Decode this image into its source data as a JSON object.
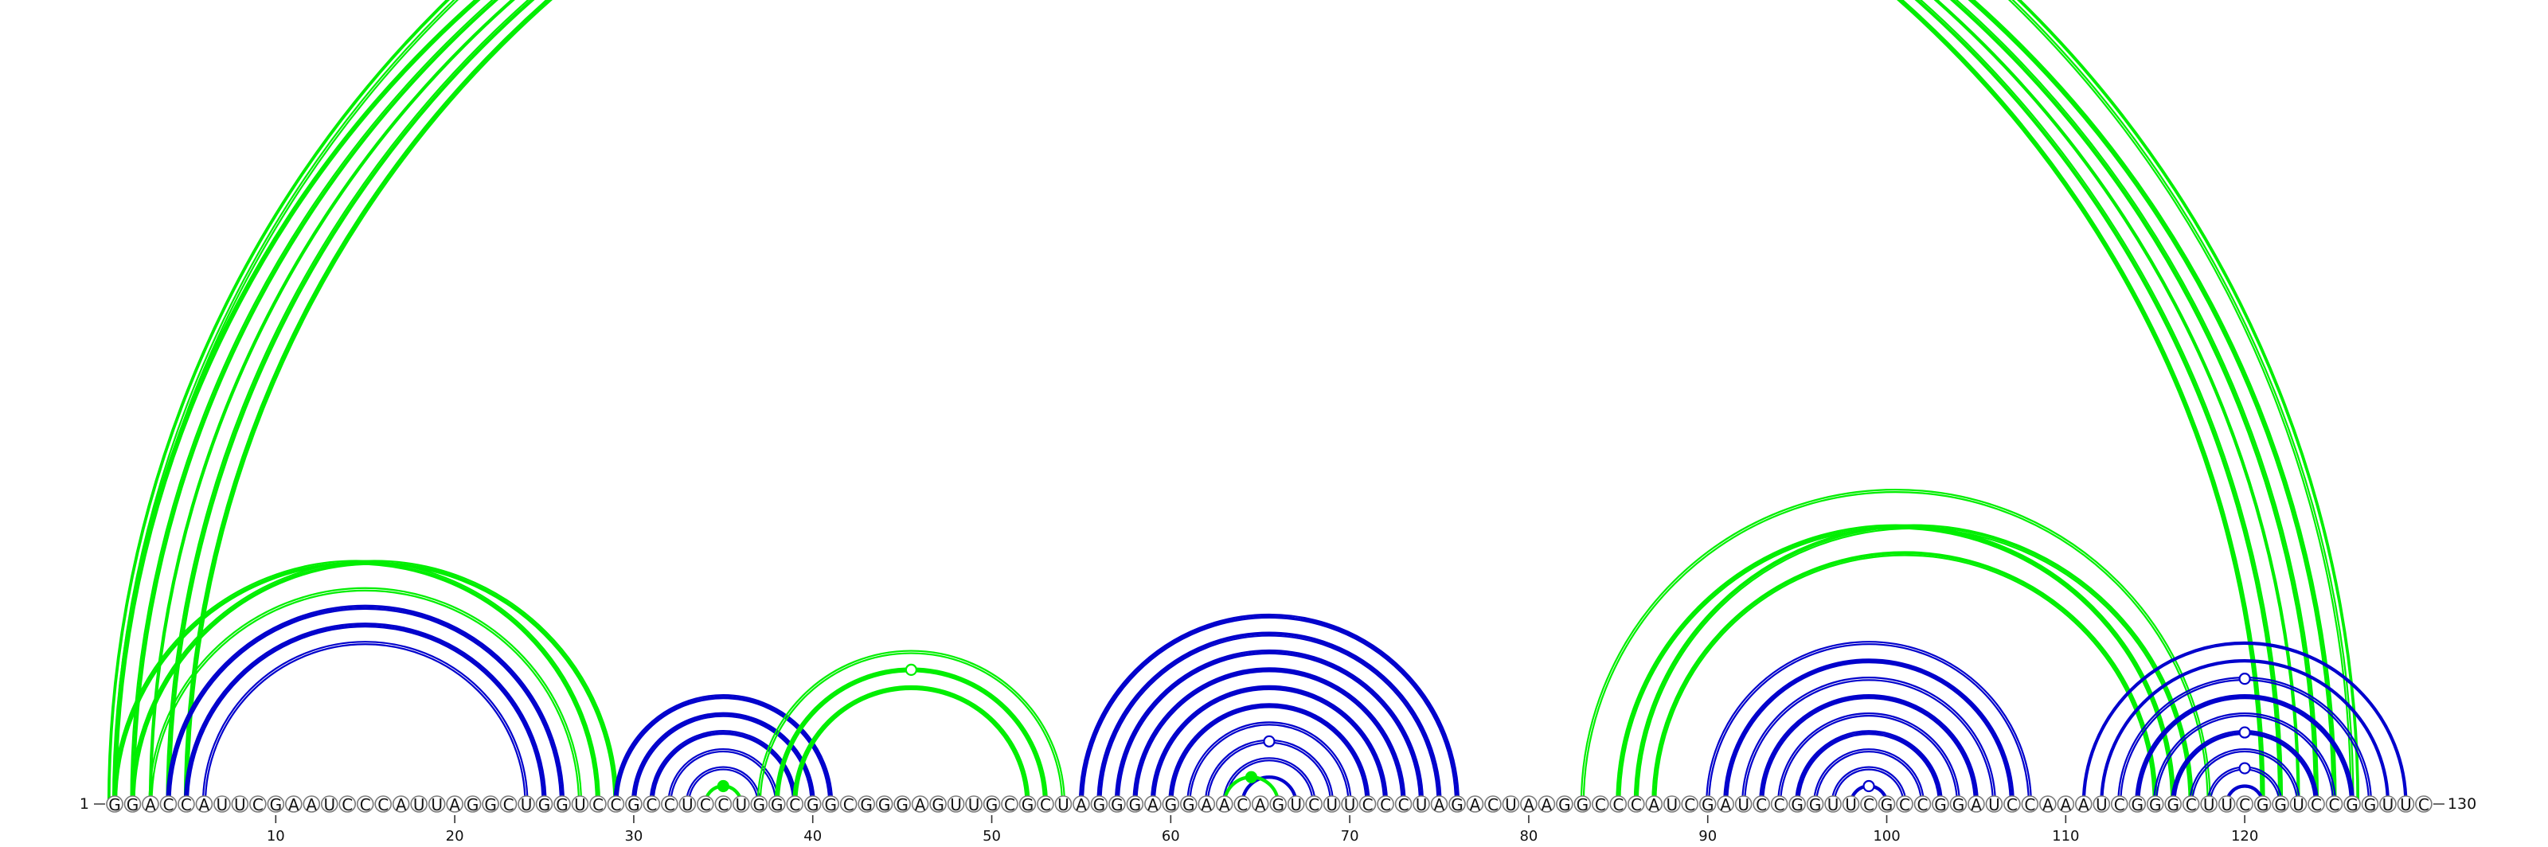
{
  "sequence": "GGACCAUUCGAAUCCCAUUAGGCUGGUCCGCCUCCUGGCGGCGGGAGUUGCGCUAGGGAGGAACAGUCUUCCCUAGACUAAGGCCCAUCGAUCCGGUUCGCCGGAUCCAAAUCGGGCUUCGGUCCGGUUC",
  "start_label": "1",
  "end_label": "130",
  "ticks": [
    "10",
    "20",
    "30",
    "40",
    "50",
    "60",
    "70",
    "80",
    "90",
    "100",
    "110",
    "120"
  ],
  "colors": {
    "blue": "#0000cc",
    "green": "#00ee00"
  },
  "arc_groups": [
    {
      "color": "green",
      "i": 1,
      "j": 126,
      "offs": [
        -1.5,
        1.5,
        6.5,
        8
      ]
    },
    {
      "color": "green",
      "i": 1,
      "j": 121,
      "offs": [
        -2,
        0,
        2
      ]
    },
    {
      "color": "green",
      "i": 2,
      "j": 122,
      "offs": [
        -2,
        0,
        2
      ]
    },
    {
      "color": "green",
      "i": 3,
      "j": 123,
      "offs": [
        -1,
        1
      ]
    },
    {
      "color": "green",
      "i": 4,
      "j": 124,
      "offs": [
        -2,
        0,
        2
      ]
    },
    {
      "color": "green",
      "i": 5,
      "j": 125,
      "offs": [
        -2,
        0,
        2
      ]
    },
    {
      "color": "green",
      "i": 2,
      "j": 29,
      "offs": [
        -2,
        0,
        2
      ]
    },
    {
      "color": "green",
      "i": 1,
      "j": 28,
      "offs": [
        -2,
        0,
        2
      ]
    },
    {
      "color": "green",
      "i": 3,
      "j": 27,
      "offs": [
        -1.5,
        1.5
      ]
    },
    {
      "color": "blue",
      "i": 4,
      "j": 26,
      "offs": [
        -2,
        0,
        2
      ]
    },
    {
      "color": "blue",
      "i": 5,
      "j": 25,
      "offs": [
        -2,
        0,
        2
      ]
    },
    {
      "color": "blue",
      "i": 6,
      "j": 24,
      "offs": [
        -1.5,
        1.5
      ]
    },
    {
      "color": "blue",
      "i": 29,
      "j": 41,
      "offs": [
        -2,
        0,
        2
      ]
    },
    {
      "color": "blue",
      "i": 30,
      "j": 40,
      "offs": [
        -2,
        0,
        2
      ]
    },
    {
      "color": "blue",
      "i": 31,
      "j": 39,
      "offs": [
        -2,
        0,
        2
      ]
    },
    {
      "color": "blue",
      "i": 32,
      "j": 38,
      "offs": [
        -1.5,
        1.5
      ]
    },
    {
      "color": "blue",
      "i": 33,
      "j": 37,
      "offs": [
        -1.5,
        1.5
      ]
    },
    {
      "color": "green",
      "i": 34,
      "j": 36,
      "offs": [
        -1,
        1
      ]
    },
    {
      "color": "green",
      "i": 37,
      "j": 54,
      "offs": [
        -1.5,
        1.5
      ]
    },
    {
      "color": "green",
      "i": 38,
      "j": 53,
      "offs": [
        -2,
        0,
        2
      ]
    },
    {
      "color": "green",
      "i": 39,
      "j": 52,
      "offs": [
        -2,
        0,
        2
      ]
    },
    {
      "color": "blue",
      "i": 55,
      "j": 76,
      "offs": [
        -2,
        0,
        2
      ]
    },
    {
      "color": "blue",
      "i": 56,
      "j": 75,
      "offs": [
        -2,
        0,
        2
      ]
    },
    {
      "color": "blue",
      "i": 57,
      "j": 74,
      "offs": [
        -2,
        0,
        2
      ]
    },
    {
      "color": "blue",
      "i": 58,
      "j": 73,
      "offs": [
        -2,
        0,
        2
      ]
    },
    {
      "color": "blue",
      "i": 59,
      "j": 72,
      "offs": [
        -2,
        0,
        2
      ]
    },
    {
      "color": "blue",
      "i": 60,
      "j": 71,
      "offs": [
        -2,
        0,
        2
      ]
    },
    {
      "color": "blue",
      "i": 61,
      "j": 70,
      "offs": [
        -1.5,
        1.5
      ]
    },
    {
      "color": "blue",
      "i": 62,
      "j": 69,
      "offs": [
        -1.5,
        1.5
      ]
    },
    {
      "color": "blue",
      "i": 63,
      "j": 68,
      "offs": [
        -1.5,
        1.5
      ]
    },
    {
      "color": "blue",
      "i": 64,
      "j": 67,
      "offs": [
        -1,
        1
      ]
    },
    {
      "color": "green",
      "i": 63,
      "j": 66,
      "offs": [
        -1,
        1
      ]
    },
    {
      "color": "green",
      "i": 83,
      "j": 118,
      "offs": [
        -1.5,
        1.5
      ]
    },
    {
      "color": "green",
      "i": 85,
      "j": 116,
      "offs": [
        -2,
        0,
        2
      ]
    },
    {
      "color": "green",
      "i": 86,
      "j": 117,
      "offs": [
        -2,
        0,
        2
      ]
    },
    {
      "color": "green",
      "i": 87,
      "j": 115,
      "offs": [
        -2,
        0,
        2
      ]
    },
    {
      "color": "blue",
      "i": 90,
      "j": 108,
      "offs": [
        -1.5,
        1.5
      ]
    },
    {
      "color": "blue",
      "i": 91,
      "j": 107,
      "offs": [
        -2,
        0,
        2
      ]
    },
    {
      "color": "blue",
      "i": 92,
      "j": 106,
      "offs": [
        -1.5,
        1.5
      ]
    },
    {
      "color": "blue",
      "i": 93,
      "j": 105,
      "offs": [
        -2,
        0,
        2
      ]
    },
    {
      "color": "blue",
      "i": 94,
      "j": 104,
      "offs": [
        -1.5,
        1.5
      ]
    },
    {
      "color": "blue",
      "i": 95,
      "j": 103,
      "offs": [
        -2,
        0,
        2
      ]
    },
    {
      "color": "blue",
      "i": 96,
      "j": 102,
      "offs": [
        -1.5,
        1.5
      ]
    },
    {
      "color": "blue",
      "i": 97,
      "j": 101,
      "offs": [
        -1.5,
        1.5
      ]
    },
    {
      "color": "blue",
      "i": 98,
      "j": 100,
      "offs": [
        -1,
        1
      ]
    },
    {
      "color": "blue",
      "i": 111,
      "j": 129,
      "offs": [
        -1,
        1
      ]
    },
    {
      "color": "blue",
      "i": 112,
      "j": 128,
      "offs": [
        -1,
        1
      ]
    },
    {
      "color": "blue",
      "i": 113,
      "j": 127,
      "offs": [
        -1.5,
        1.5
      ]
    },
    {
      "color": "blue",
      "i": 114,
      "j": 126,
      "offs": [
        -2,
        0,
        2
      ]
    },
    {
      "color": "blue",
      "i": 115,
      "j": 125,
      "offs": [
        -1.5,
        1.5
      ]
    },
    {
      "color": "blue",
      "i": 116,
      "j": 124,
      "offs": [
        -2,
        0,
        2
      ]
    },
    {
      "color": "blue",
      "i": 117,
      "j": 123,
      "offs": [
        -1.5,
        1.5
      ]
    },
    {
      "color": "blue",
      "i": 118,
      "j": 122,
      "offs": [
        -1.5,
        1.5
      ]
    },
    {
      "color": "blue",
      "i": 119,
      "j": 121,
      "offs": [
        -1,
        1
      ]
    }
  ],
  "markers": [
    {
      "color": "green",
      "i": 1,
      "j": 126,
      "off": 1.5,
      "filled": false
    },
    {
      "color": "green",
      "i": 38,
      "j": 53,
      "off": 0,
      "filled": false
    },
    {
      "color": "green",
      "i": 34,
      "j": 36,
      "off": 0,
      "filled": true
    },
    {
      "color": "green",
      "i": 63,
      "j": 66,
      "off": 0,
      "filled": true
    },
    {
      "color": "blue",
      "i": 62,
      "j": 69,
      "off": 0,
      "filled": false
    },
    {
      "color": "blue",
      "i": 98,
      "j": 100,
      "off": 0,
      "filled": false
    },
    {
      "color": "blue",
      "i": 113,
      "j": 127,
      "off": 0,
      "filled": false
    },
    {
      "color": "blue",
      "i": 116,
      "j": 124,
      "off": 0,
      "filled": false
    },
    {
      "color": "blue",
      "i": 118,
      "j": 122,
      "off": 0,
      "filled": false
    }
  ]
}
